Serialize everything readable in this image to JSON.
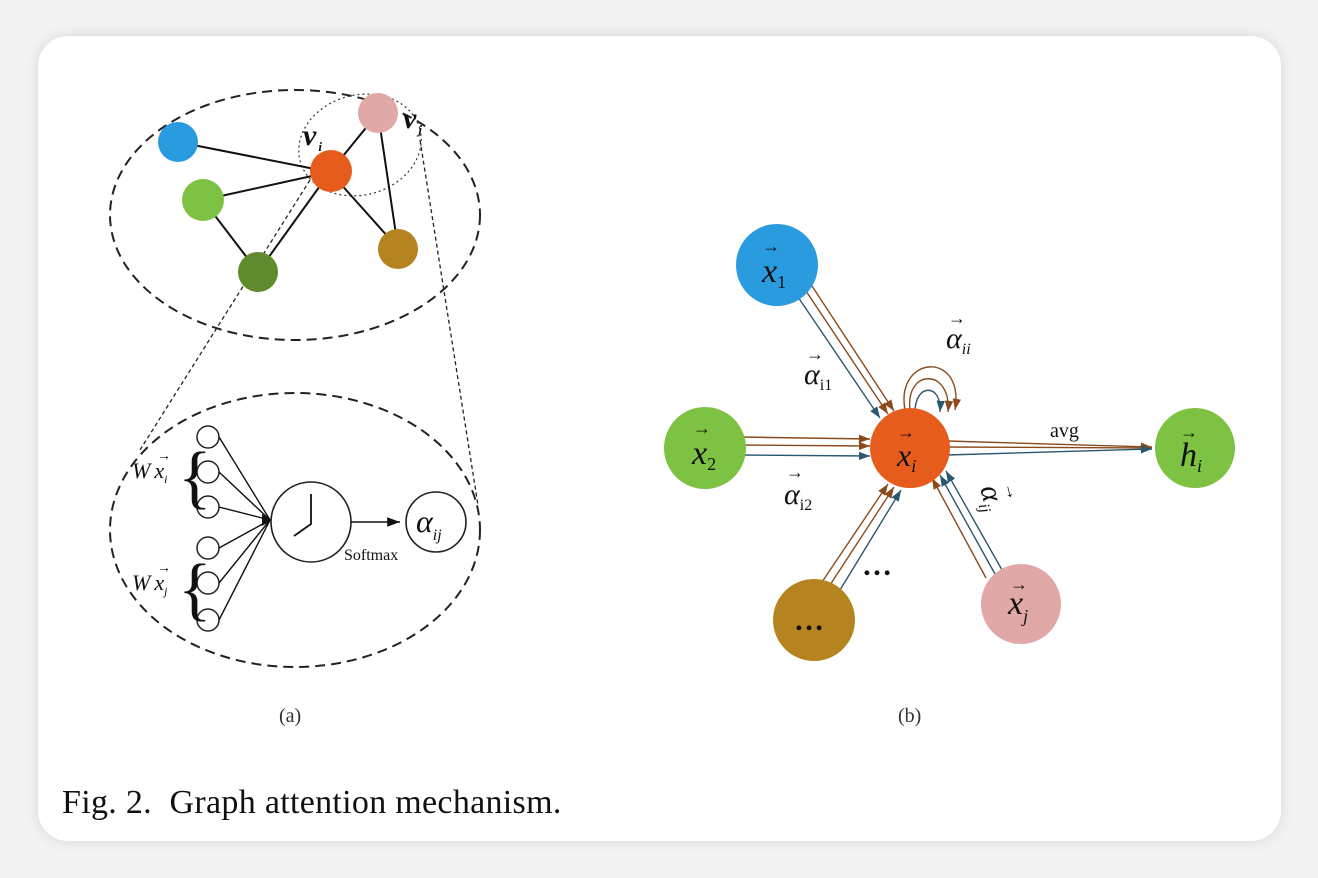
{
  "caption": "Fig. 2.  Graph attention mechanism.",
  "panel_a": {
    "label": "(a)",
    "node_vi": "v",
    "node_vi_sub": "i",
    "node_vj": "v",
    "node_vj_sub": "j",
    "wx_top": "W",
    "wx_top_x": "x",
    "wx_top_sub": "i",
    "wx_bottom": "W",
    "wx_bottom_x": "x",
    "wx_bottom_sub": "j",
    "softmax": "Softmax",
    "alpha": "α",
    "alpha_sub": "ij",
    "colors": {
      "blue": "#2b9be0",
      "green_light": "#7dc242",
      "green_dark": "#5f8a2e",
      "orange": "#e55c1d",
      "pink": "#e0a8a6",
      "brown": "#b58320"
    }
  },
  "panel_b": {
    "label": "(b)",
    "x1": "x",
    "x1_sub": "1",
    "x2": "x",
    "x2_sub": "2",
    "xi": "x",
    "xi_sub": "i",
    "xj": "x",
    "xj_sub": "j",
    "h": "h",
    "h_sub": "i",
    "dots_node": "…",
    "dots_side": "…",
    "avg": "avg",
    "alpha_i1": "α",
    "alpha_i1_sub": "i1",
    "alpha_i2": "α",
    "alpha_i2_sub": "i2",
    "alpha_ii": "α",
    "alpha_ii_sub": "ii",
    "alpha_ij": "α",
    "alpha_ij_sub": "ij",
    "vec": "→",
    "colors": {
      "blue": "#2b9be0",
      "green": "#7dc242",
      "orange": "#e55c1d",
      "pink": "#e0a8a6",
      "brown": "#b58320",
      "arrow_brown": "#8b4a1c",
      "arrow_teal": "#2a5870"
    }
  }
}
